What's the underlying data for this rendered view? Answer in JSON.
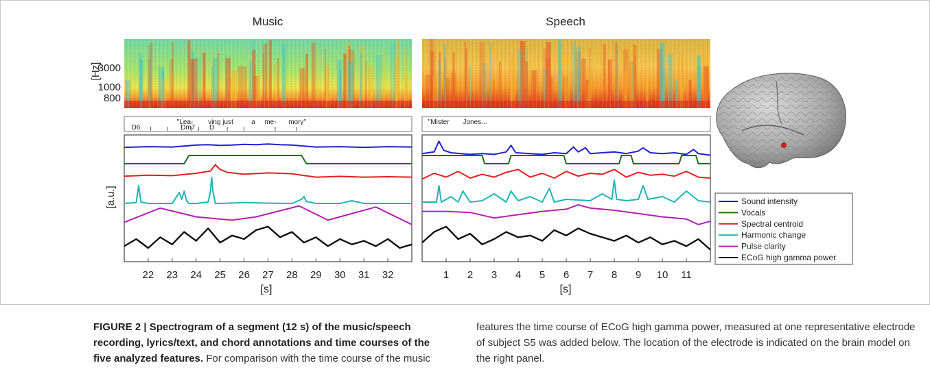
{
  "panels": {
    "music": {
      "title": "Music",
      "lyrics": [
        {
          "t": 21.3,
          "row": 1,
          "text": "D6"
        },
        {
          "t": 23.2,
          "row": 0,
          "text": "\"Lea-"
        },
        {
          "t": 23.35,
          "row": 1,
          "text": "Dm7"
        },
        {
          "t": 24.5,
          "row": 0,
          "text": "ving just"
        },
        {
          "t": 24.55,
          "row": 1,
          "text": "D"
        },
        {
          "t": 26.3,
          "row": 0,
          "text": "a"
        },
        {
          "t": 26.85,
          "row": 0,
          "text": "me-"
        },
        {
          "t": 27.85,
          "row": 0,
          "text": "mory\""
        }
      ],
      "lyric_ticks": [
        22.1,
        22.8,
        23.8,
        24.1,
        25.3,
        26.0,
        27.3,
        28.2
      ],
      "x_ticks": [
        "22",
        "23",
        "24",
        "25",
        "26",
        "27",
        "28",
        "29",
        "30",
        "31",
        "32"
      ],
      "x_label": "[s]"
    },
    "speech": {
      "title": "Speech",
      "lyrics": [
        {
          "t": 0.25,
          "row": 0,
          "text": "\"Mister"
        },
        {
          "t": 1.7,
          "row": 0,
          "text": "Jones..."
        }
      ],
      "lyric_ticks": [],
      "x_ticks": [
        "1",
        "2",
        "3",
        "4",
        "5",
        "6",
        "7",
        "8",
        "9",
        "10",
        "11"
      ],
      "x_label": "[s]"
    }
  },
  "axes": {
    "spectrogram_y_label": "[Hz]",
    "spectrogram_y_ticks": [
      "3000",
      "1000",
      "800"
    ],
    "features_y_label": "[a.u.]"
  },
  "chart_data": [
    {
      "type": "line",
      "panel": "music",
      "x_range": [
        21,
        33
      ],
      "x_ticks": [
        22,
        23,
        24,
        25,
        26,
        27,
        28,
        29,
        30,
        31,
        32
      ],
      "xlabel": "[s]",
      "ylabel": "[a.u.]",
      "series": [
        {
          "name": "Sound intensity",
          "x": [
            21,
            22,
            23,
            23.5,
            24,
            24.5,
            25,
            25.5,
            26,
            26.5,
            27,
            27.5,
            28,
            28.5,
            29,
            30,
            31,
            32,
            33
          ],
          "values": [
            0.58,
            0.62,
            0.6,
            0.66,
            0.72,
            0.74,
            0.7,
            0.72,
            0.76,
            0.74,
            0.78,
            0.74,
            0.72,
            0.66,
            0.6,
            0.62,
            0.58,
            0.62,
            0.6
          ]
        },
        {
          "name": "Vocals",
          "x": [
            21,
            23.5,
            23.7,
            28.4,
            28.6,
            33
          ],
          "values": [
            0,
            0,
            1,
            1,
            0,
            0
          ]
        },
        {
          "name": "Spectral centroid",
          "x": [
            21,
            22,
            23,
            24,
            24.6,
            24.8,
            25,
            25.3,
            26,
            27,
            28,
            28.4,
            29,
            30,
            31,
            32,
            33
          ],
          "values": [
            0.35,
            0.4,
            0.38,
            0.5,
            0.62,
            0.95,
            0.7,
            0.55,
            0.45,
            0.52,
            0.48,
            0.4,
            0.3,
            0.34,
            0.3,
            0.32,
            0.3
          ]
        },
        {
          "name": "Harmonic change",
          "x": [
            21,
            21.5,
            21.6,
            21.7,
            22,
            23,
            23.3,
            23.4,
            23.5,
            23.6,
            23.7,
            24,
            24.5,
            24.6,
            24.65,
            24.7,
            24.8,
            25,
            26,
            27,
            28,
            28.4,
            28.5,
            28.6,
            29,
            30,
            30.5,
            31,
            32,
            33
          ],
          "values": [
            0.05,
            0.08,
            0.7,
            0.1,
            0.05,
            0.05,
            0.45,
            0.2,
            0.5,
            0.15,
            0.05,
            0.05,
            0.1,
            0.5,
            1.0,
            0.5,
            0.05,
            0.05,
            0.08,
            0.06,
            0.05,
            0.2,
            0.3,
            0.12,
            0.05,
            0.05,
            0.15,
            0.05,
            0.05,
            0.05
          ]
        },
        {
          "name": "Pulse clarity",
          "x": [
            21,
            22.5,
            24,
            25.5,
            26.5,
            28.3,
            29.5,
            31.5,
            33
          ],
          "values": [
            0.2,
            0.85,
            0.45,
            0.3,
            0.45,
            0.95,
            0.3,
            0.9,
            0.1
          ]
        },
        {
          "name": "ECoG high gamma power",
          "x": [
            21,
            21.5,
            22,
            22.5,
            23,
            23.5,
            24,
            24.5,
            25,
            25.5,
            26,
            26.5,
            27,
            27.5,
            28,
            28.5,
            29,
            29.5,
            30,
            30.5,
            31,
            31.5,
            32,
            32.5,
            33
          ],
          "values": [
            0.3,
            0.5,
            0.25,
            0.55,
            0.35,
            0.7,
            0.45,
            0.8,
            0.4,
            0.6,
            0.5,
            0.75,
            0.85,
            0.55,
            0.7,
            0.4,
            0.55,
            0.3,
            0.5,
            0.35,
            0.45,
            0.3,
            0.5,
            0.25,
            0.35
          ]
        }
      ]
    },
    {
      "type": "line",
      "panel": "speech",
      "x_range": [
        0,
        12
      ],
      "x_ticks": [
        1,
        2,
        3,
        4,
        5,
        6,
        7,
        8,
        9,
        10,
        11
      ],
      "xlabel": "[s]",
      "ylabel": "[a.u.]",
      "series": [
        {
          "name": "Sound intensity",
          "x": [
            0,
            0.5,
            0.7,
            0.9,
            1.2,
            2,
            2.5,
            3,
            3.5,
            3.7,
            3.9,
            4.5,
            5,
            5.5,
            6,
            6.3,
            6.5,
            6.8,
            7,
            7.5,
            8,
            8.5,
            9,
            9.2,
            9.5,
            10,
            10.5,
            11,
            11.3,
            11.5,
            12
          ],
          "values": [
            0.2,
            0.3,
            0.95,
            0.4,
            0.25,
            0.15,
            0.2,
            0.15,
            0.3,
            0.7,
            0.25,
            0.2,
            0.15,
            0.25,
            0.2,
            0.6,
            0.3,
            0.55,
            0.2,
            0.25,
            0.3,
            0.2,
            0.35,
            0.55,
            0.25,
            0.2,
            0.25,
            0.15,
            0.45,
            0.2,
            0.1
          ]
        },
        {
          "name": "Vocals",
          "x": [
            0,
            2.5,
            2.6,
            3.6,
            3.7,
            5.9,
            6.0,
            8.2,
            8.3,
            8.7,
            8.8,
            10.7,
            10.8,
            11.4,
            11.5,
            12
          ],
          "values": [
            1,
            1,
            0,
            0,
            1,
            1,
            0,
            0,
            1,
            1,
            0,
            0,
            1,
            1,
            0,
            0
          ]
        },
        {
          "name": "Spectral centroid",
          "x": [
            0,
            0.5,
            1,
            1.5,
            2,
            2.5,
            3,
            3.5,
            4,
            4.5,
            5,
            5.5,
            6,
            6.5,
            7,
            7.5,
            8,
            8.5,
            9,
            9.5,
            10,
            10.5,
            11,
            11.5,
            12
          ],
          "values": [
            0.2,
            0.5,
            0.3,
            0.6,
            0.25,
            0.45,
            0.3,
            0.55,
            0.7,
            0.3,
            0.5,
            0.25,
            0.6,
            0.35,
            0.5,
            0.45,
            0.7,
            0.3,
            0.55,
            0.4,
            0.45,
            0.35,
            0.6,
            0.3,
            0.25
          ]
        },
        {
          "name": "Harmonic change",
          "x": [
            0,
            0.6,
            0.7,
            0.8,
            1.2,
            1.5,
            1.7,
            2,
            2.5,
            3,
            3.5,
            3.7,
            4,
            4.5,
            5,
            5.3,
            5.5,
            6,
            7,
            7.5,
            7.9,
            8,
            8.1,
            8.5,
            9,
            9.2,
            9.4,
            10,
            10.5,
            11,
            11.5,
            12
          ],
          "values": [
            0.1,
            0.1,
            0.7,
            0.1,
            0.3,
            0.1,
            0.5,
            0.1,
            0.15,
            0.4,
            0.1,
            0.5,
            0.15,
            0.3,
            0.1,
            0.6,
            0.1,
            0.2,
            0.15,
            0.4,
            0.2,
            0.9,
            0.2,
            0.15,
            0.2,
            0.7,
            0.2,
            0.3,
            0.1,
            0.5,
            0.15,
            0.1
          ]
        },
        {
          "name": "Pulse clarity",
          "x": [
            0,
            1,
            2,
            3,
            4,
            5,
            6,
            6.5,
            7,
            8,
            9,
            10,
            11,
            11.5,
            12
          ],
          "values": [
            0.7,
            0.7,
            0.65,
            0.4,
            0.55,
            0.7,
            0.8,
            1.0,
            0.85,
            0.75,
            0.6,
            0.45,
            0.35,
            0.1,
            0.25
          ]
        },
        {
          "name": "ECoG high gamma power",
          "x": [
            0,
            0.5,
            1,
            1.5,
            2,
            2.5,
            3,
            3.5,
            4,
            4.5,
            5,
            5.5,
            6,
            6.5,
            7,
            7.5,
            8,
            8.5,
            9,
            9.5,
            10,
            10.5,
            11,
            11.5,
            12
          ],
          "values": [
            0.4,
            0.7,
            0.85,
            0.5,
            0.65,
            0.35,
            0.5,
            0.7,
            0.55,
            0.6,
            0.45,
            0.75,
            0.6,
            0.8,
            0.65,
            0.55,
            0.45,
            0.6,
            0.4,
            0.55,
            0.35,
            0.45,
            0.3,
            0.5,
            0.2
          ]
        }
      ]
    }
  ],
  "legend": {
    "position": "bottom-right",
    "entries": [
      {
        "name": "Sound intensity",
        "color": "#1f1fd0"
      },
      {
        "name": "Vocals",
        "color": "#1e6b1e"
      },
      {
        "name": "Spectral centroid",
        "color": "#e41e1e"
      },
      {
        "name": "Harmonic change",
        "color": "#1fb4b4"
      },
      {
        "name": "Pulse clarity",
        "color": "#b31fb3"
      },
      {
        "name": "ECoG high gamma power",
        "color": "#111111"
      }
    ]
  },
  "caption": {
    "lead_bold": "FIGURE 2 | Spectrogram of a segment (12 s) of the music/speech recording, lyrics/text, and chord annotations and time courses of the five analyzed features.",
    "body_left": "For comparison with the time course of the music",
    "body_right": "features the time course of ECoG high gamma power, measured at one representative electrode of subject S5 was added below. The location of the electrode is indicated on the brain model on the right panel."
  }
}
